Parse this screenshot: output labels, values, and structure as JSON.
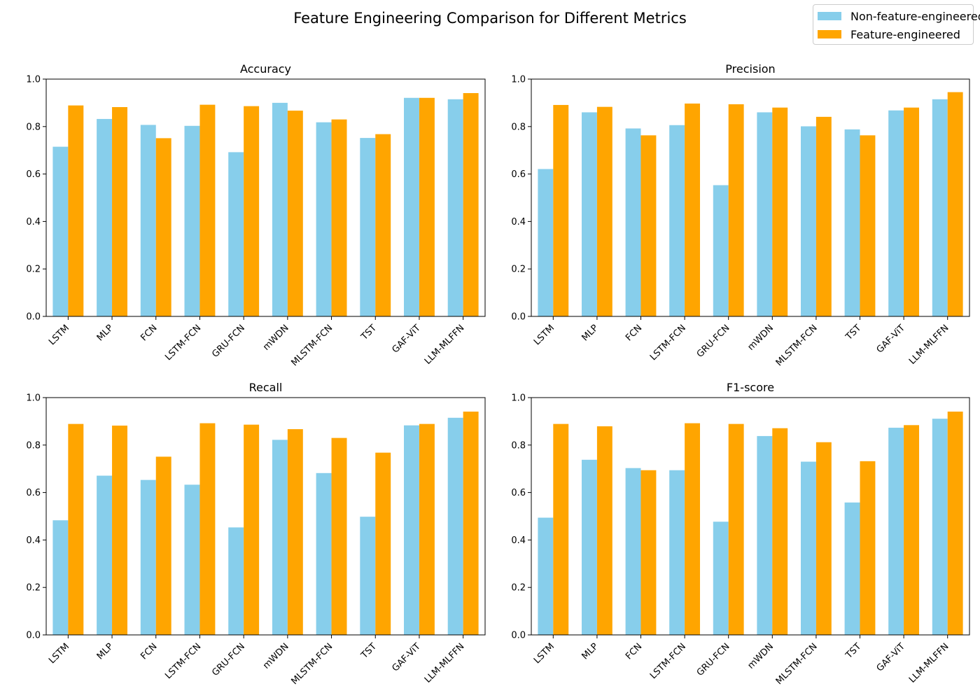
{
  "suptitle": "Feature Engineering Comparison for Different Metrics",
  "colors": {
    "non_fe": "#87CEEB",
    "fe": "#FFA500"
  },
  "legend": {
    "items": [
      "Non-feature-engineered",
      "Feature-engineered"
    ]
  },
  "chart_data": [
    {
      "type": "bar",
      "title": "Accuracy",
      "categories": [
        "LSTM",
        "MLP",
        "FCN",
        "LSTM-FCN",
        "GRU-FCN",
        "mWDN",
        "MLSTM-FCN",
        "TST",
        "GAF-ViT",
        "LLM-MLFFN"
      ],
      "ylim": [
        0,
        1.0
      ],
      "yticks": [
        "0.0",
        "0.2",
        "0.4",
        "0.6",
        "0.8",
        "1.0"
      ],
      "series": [
        {
          "name": "Non-feature-engineered",
          "values": [
            0.715,
            0.832,
            0.807,
            0.803,
            0.692,
            0.9,
            0.818,
            0.752,
            0.921,
            0.915
          ]
        },
        {
          "name": "Feature-engineered",
          "values": [
            0.889,
            0.882,
            0.751,
            0.892,
            0.886,
            0.867,
            0.83,
            0.768,
            0.921,
            0.941
          ]
        }
      ]
    },
    {
      "type": "bar",
      "title": "Precision",
      "categories": [
        "LSTM",
        "MLP",
        "FCN",
        "LSTM-FCN",
        "GRU-FCN",
        "mWDN",
        "MLSTM-FCN",
        "TST",
        "GAF-ViT",
        "LLM-MLFFN"
      ],
      "ylim": [
        0,
        1.0
      ],
      "yticks": [
        "0.0",
        "0.2",
        "0.4",
        "0.6",
        "0.8",
        "1.0"
      ],
      "series": [
        {
          "name": "Non-feature-engineered",
          "values": [
            0.621,
            0.86,
            0.792,
            0.806,
            0.553,
            0.86,
            0.801,
            0.788,
            0.868,
            0.915
          ]
        },
        {
          "name": "Feature-engineered",
          "values": [
            0.891,
            0.883,
            0.763,
            0.897,
            0.894,
            0.88,
            0.841,
            0.763,
            0.88,
            0.945
          ]
        }
      ]
    },
    {
      "type": "bar",
      "title": "Recall",
      "categories": [
        "LSTM",
        "MLP",
        "FCN",
        "LSTM-FCN",
        "GRU-FCN",
        "mWDN",
        "MLSTM-FCN",
        "TST",
        "GAF-ViT",
        "LLM-MLFFN"
      ],
      "ylim": [
        0,
        1.0
      ],
      "yticks": [
        "0.0",
        "0.2",
        "0.4",
        "0.6",
        "0.8",
        "1.0"
      ],
      "series": [
        {
          "name": "Non-feature-engineered",
          "values": [
            0.483,
            0.671,
            0.653,
            0.633,
            0.453,
            0.822,
            0.682,
            0.498,
            0.883,
            0.915
          ]
        },
        {
          "name": "Feature-engineered",
          "values": [
            0.889,
            0.882,
            0.751,
            0.892,
            0.886,
            0.867,
            0.83,
            0.768,
            0.889,
            0.941
          ]
        }
      ]
    },
    {
      "type": "bar",
      "title": "F1-score",
      "categories": [
        "LSTM",
        "MLP",
        "FCN",
        "LSTM-FCN",
        "GRU-FCN",
        "mWDN",
        "MLSTM-FCN",
        "TST",
        "GAF-ViT",
        "LLM-MLFFN"
      ],
      "ylim": [
        0,
        1.0
      ],
      "yticks": [
        "0.0",
        "0.2",
        "0.4",
        "0.6",
        "0.8",
        "1.0"
      ],
      "series": [
        {
          "name": "Non-feature-engineered",
          "values": [
            0.494,
            0.738,
            0.703,
            0.694,
            0.477,
            0.838,
            0.73,
            0.558,
            0.873,
            0.911
          ]
        },
        {
          "name": "Feature-engineered",
          "values": [
            0.889,
            0.879,
            0.694,
            0.892,
            0.889,
            0.871,
            0.812,
            0.732,
            0.884,
            0.941
          ]
        }
      ]
    }
  ]
}
